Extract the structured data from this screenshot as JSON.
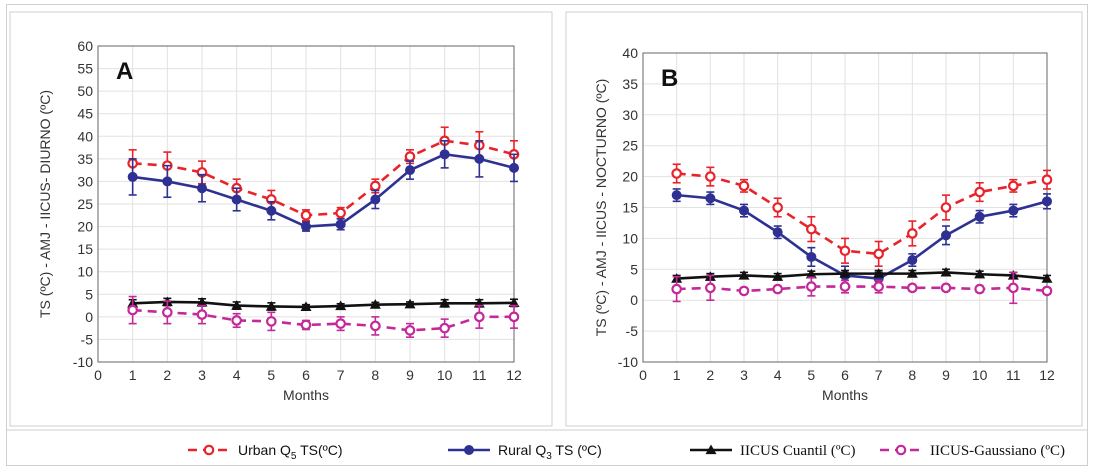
{
  "chart_data": [
    {
      "type": "line",
      "panel_label": "A",
      "xlabel": "Months",
      "ylabel": "TS (ºC) - AMJ - IICUS- DIURNO (ºC)",
      "xlim": [
        0,
        12
      ],
      "ylim": [
        -10,
        60
      ],
      "x_ticks": [
        0,
        1,
        2,
        3,
        4,
        5,
        6,
        7,
        8,
        9,
        10,
        11,
        12
      ],
      "y_ticks": [
        -10,
        -5,
        0,
        5,
        10,
        15,
        20,
        25,
        30,
        35,
        40,
        45,
        50,
        55,
        60
      ],
      "grid": true,
      "x": [
        1,
        2,
        3,
        4,
        5,
        6,
        7,
        8,
        9,
        10,
        11,
        12
      ],
      "series": [
        {
          "key": "urban",
          "color": "#e8232a",
          "dash": "dashed",
          "marker": "open-circle",
          "values": [
            34,
            33.5,
            32,
            28.5,
            26,
            22.5,
            23,
            29,
            35.5,
            39,
            38,
            36
          ],
          "errors": [
            3,
            3,
            2.5,
            2,
            2,
            1.2,
            1.2,
            1.5,
            1.5,
            3,
            3,
            3
          ]
        },
        {
          "key": "rural",
          "color": "#2e3192",
          "dash": "solid",
          "marker": "filled-circle",
          "values": [
            31,
            30,
            28.5,
            26,
            23.5,
            20,
            20.5,
            26,
            32.5,
            36,
            35,
            33
          ],
          "errors": [
            4,
            3.5,
            3,
            2.5,
            2,
            1,
            1.2,
            2,
            2,
            3,
            4,
            3
          ]
        },
        {
          "key": "cuantil",
          "color": "#111111",
          "dash": "solid",
          "marker": "filled-triangle",
          "values": [
            3,
            3.3,
            3.2,
            2.5,
            2.3,
            2.2,
            2.4,
            2.7,
            2.8,
            3,
            3,
            3.1
          ],
          "errors": [
            0.8,
            0.8,
            0.8,
            0.8,
            0.8,
            0.5,
            0.5,
            0.5,
            0.5,
            0.8,
            0.8,
            0.8
          ]
        },
        {
          "key": "gaussiano",
          "color": "#c4299a",
          "dash": "dashed",
          "marker": "open-circle",
          "values": [
            1.5,
            1,
            0.5,
            -0.8,
            -1,
            -1.8,
            -1.5,
            -2,
            -3,
            -2.5,
            0,
            0
          ],
          "errors": [
            3,
            2.5,
            2,
            1.5,
            2,
            1,
            1.5,
            2,
            1.5,
            2,
            2.5,
            2.5
          ]
        }
      ]
    },
    {
      "type": "line",
      "panel_label": "B",
      "xlabel": "Months",
      "ylabel": "TS (ºC) - AMJ - IICUS - NOCTURNO (ºC)",
      "xlim": [
        0,
        12
      ],
      "ylim": [
        -10,
        40
      ],
      "x_ticks": [
        0,
        1,
        2,
        3,
        4,
        5,
        6,
        7,
        8,
        9,
        10,
        11,
        12
      ],
      "y_ticks": [
        -10,
        -5,
        0,
        5,
        10,
        15,
        20,
        25,
        30,
        35,
        40
      ],
      "grid": true,
      "x": [
        1,
        2,
        3,
        4,
        5,
        6,
        7,
        8,
        9,
        10,
        11,
        12
      ],
      "series": [
        {
          "key": "urban",
          "color": "#e8232a",
          "dash": "dashed",
          "marker": "open-circle",
          "values": [
            20.5,
            20,
            18.5,
            15,
            11.5,
            8,
            7.5,
            10.8,
            15,
            17.5,
            18.5,
            19.5
          ],
          "errors": [
            1.5,
            1.5,
            1,
            1.5,
            2,
            2,
            2,
            2,
            2,
            1.5,
            1,
            1.5
          ]
        },
        {
          "key": "rural",
          "color": "#2e3192",
          "dash": "solid",
          "marker": "filled-circle",
          "values": [
            17,
            16.5,
            14.5,
            11,
            7,
            4,
            3.5,
            6.5,
            10.5,
            13.5,
            14.5,
            16
          ],
          "errors": [
            1,
            1,
            1,
            1,
            1.5,
            1.5,
            1,
            1,
            1.5,
            1,
            1,
            1.2
          ]
        },
        {
          "key": "cuantil",
          "color": "#111111",
          "dash": "solid",
          "marker": "filled-triangle",
          "values": [
            3.5,
            3.8,
            4,
            3.8,
            4.2,
            4.3,
            4.3,
            4.3,
            4.5,
            4.2,
            4,
            3.5
          ],
          "errors": [
            0.5,
            0.5,
            0.5,
            0.5,
            0.5,
            0.5,
            0.5,
            0.5,
            0.5,
            0.5,
            0.5,
            0.5
          ]
        },
        {
          "key": "gaussiano",
          "color": "#c4299a",
          "dash": "dashed",
          "marker": "open-circle",
          "values": [
            1.8,
            2,
            1.5,
            1.8,
            2.2,
            2.2,
            2.2,
            2,
            2,
            1.8,
            2,
            1.5
          ],
          "errors": [
            2,
            2,
            0.5,
            0.5,
            1.5,
            1,
            1,
            0.5,
            0.5,
            0.5,
            2.5,
            0.5
          ]
        }
      ]
    }
  ],
  "legend": {
    "placement": "bottom",
    "items": [
      {
        "key": "urban",
        "text": "Urban Q",
        "sub": "5",
        "suffix": " TS(ºC)",
        "serif": false
      },
      {
        "key": "rural",
        "text": "Rural Q",
        "sub": "3",
        "suffix": " TS (ºC)",
        "serif": false
      },
      {
        "key": "cuantil",
        "text": "IICUS Cuantil (ºC)",
        "sub": "",
        "suffix": "",
        "serif": true
      },
      {
        "key": "gaussiano",
        "text": "IICUS-Gaussiano (ºC)",
        "sub": "",
        "suffix": "",
        "serif": true
      }
    ]
  }
}
